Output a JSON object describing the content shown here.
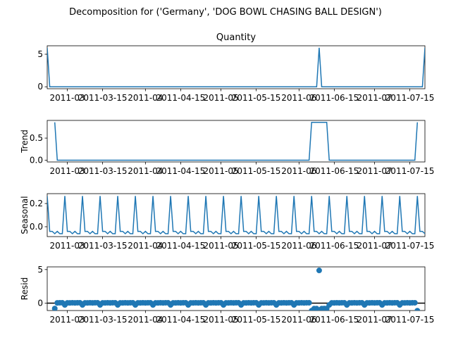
{
  "chart_data": {
    "type": "line",
    "suptitle": "Decomposition for ('Germany', 'DOG BOWL CHASING BALL DESIGN')",
    "x_range": [
      "2011-02-21",
      "2011-07-21"
    ],
    "x_ticks": [
      "2011-03",
      "2011-03-15",
      "2011-04",
      "2011-04-15",
      "2011-05",
      "2011-05-15",
      "2011-06",
      "2011-06-15",
      "2011-07",
      "2011-07-15"
    ],
    "period_days": 7,
    "panels": [
      {
        "name": "quantity",
        "type": "line",
        "title": "Quantity",
        "ylabel": "",
        "ylim": [
          -0.3,
          6.3
        ],
        "yticks": [
          0,
          5
        ],
        "series": [
          {
            "x": [
              "2011-02-21",
              "2011-02-22",
              "2011-06-08",
              "2011-06-09",
              "2011-06-10",
              "2011-07-20",
              "2011-07-21"
            ],
            "y": [
              6,
              0,
              0,
              6,
              0,
              0,
              6
            ]
          }
        ]
      },
      {
        "name": "trend",
        "type": "line",
        "title": "",
        "ylabel": "Trend",
        "ylim": [
          -0.04,
          0.9
        ],
        "yticks": [
          0.0,
          0.5
        ],
        "series": [
          {
            "x": [
              "2011-02-24",
              "2011-02-25",
              "2011-06-05",
              "2011-06-06",
              "2011-06-12",
              "2011-06-13",
              "2011-07-17",
              "2011-07-18"
            ],
            "y": [
              0.857,
              0,
              0,
              0.857,
              0.857,
              0,
              0,
              0.857
            ]
          }
        ]
      },
      {
        "name": "seasonal",
        "type": "line",
        "title": "",
        "ylabel": "Seasonal",
        "ylim": [
          -0.085,
          0.285
        ],
        "yticks": [
          0.0,
          0.2
        ],
        "weekly_pattern": [
          0.265,
          -0.04,
          -0.04,
          -0.06,
          -0.04,
          -0.06,
          -0.06
        ],
        "series_start": "2011-02-21"
      },
      {
        "name": "resid",
        "type": "scatter",
        "title": "",
        "ylabel": "Resid",
        "ylim": [
          -1.1,
          5.4
        ],
        "yticks": [
          0,
          5
        ],
        "zero_line": true,
        "outlier": {
          "x": "2011-06-09",
          "y": 4.87
        }
      }
    ]
  }
}
